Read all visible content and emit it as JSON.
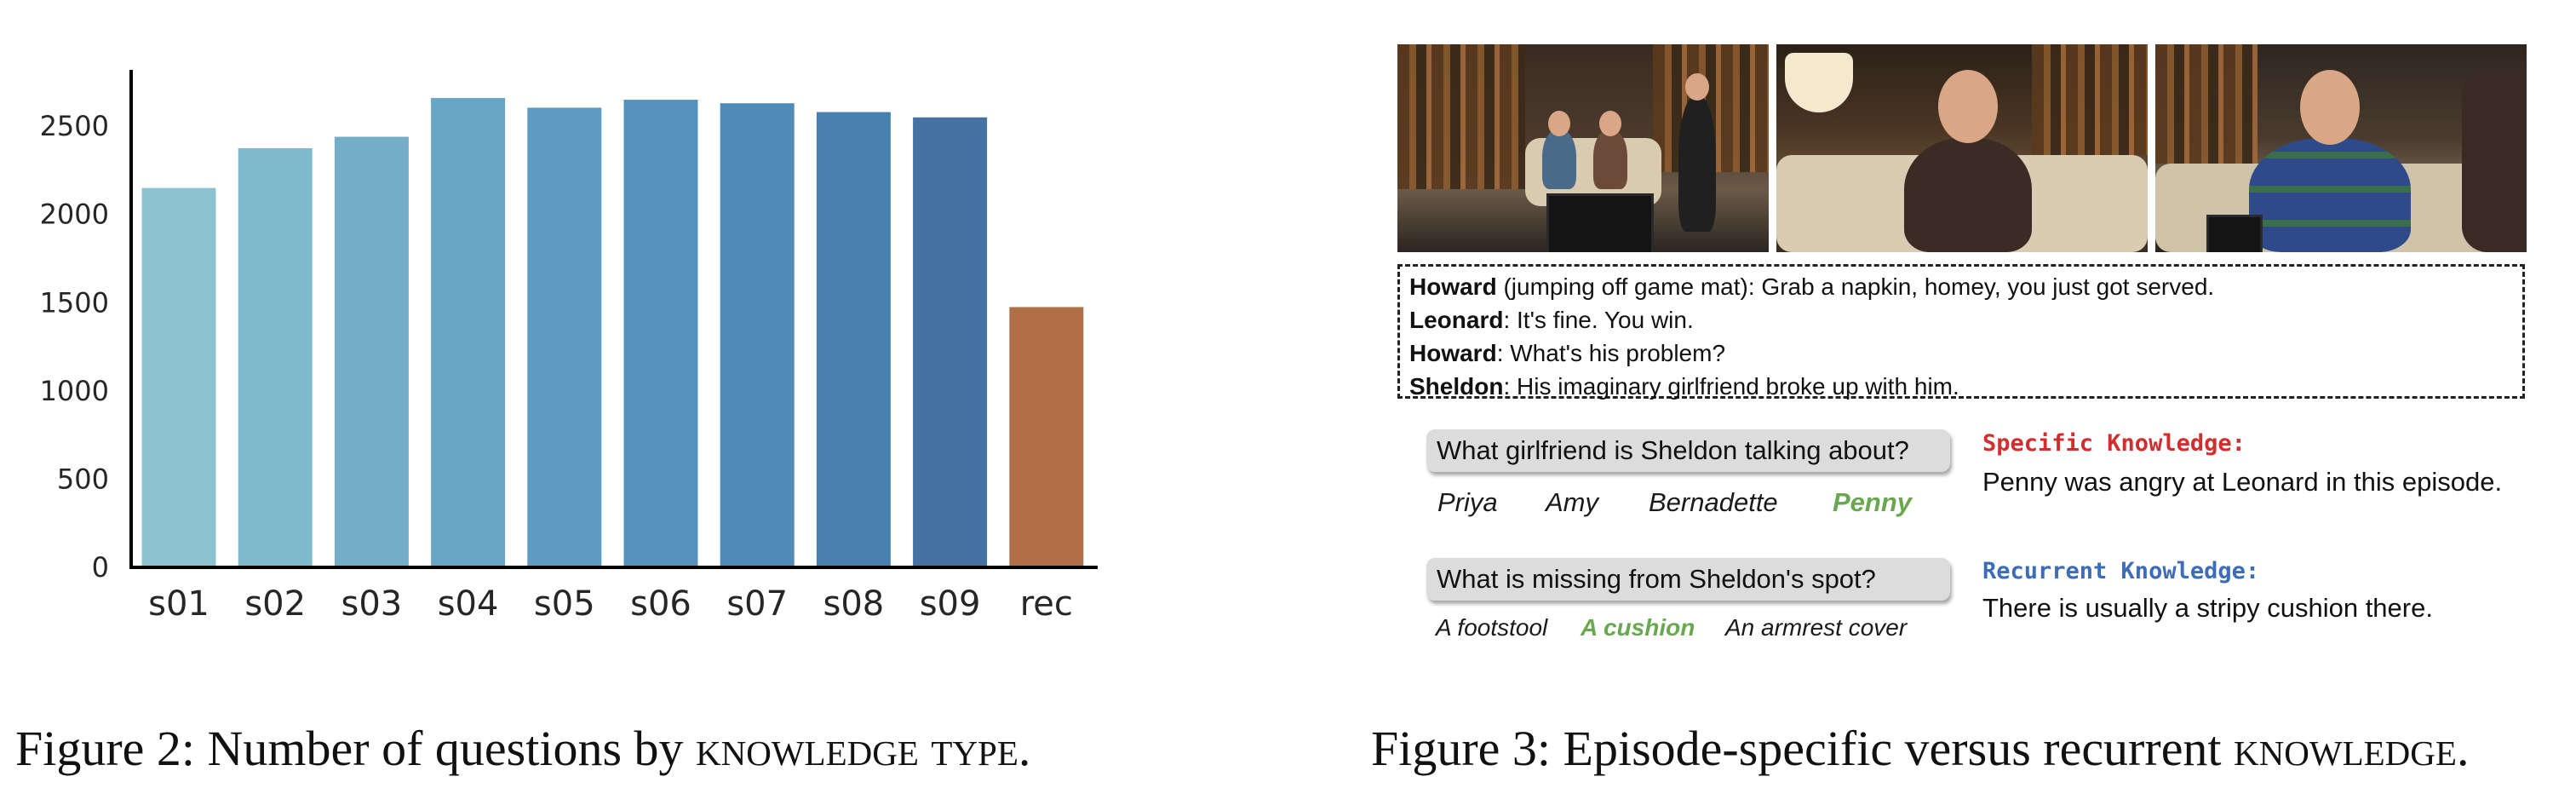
{
  "figure2": {
    "caption_prefix": "Figure 2: Number of questions by ",
    "caption_term": "knowledge type",
    "caption_suffix": "."
  },
  "chart_data": {
    "type": "bar",
    "categories": [
      "s01",
      "s02",
      "s03",
      "s04",
      "s05",
      "s06",
      "s07",
      "s08",
      "s09",
      "rec"
    ],
    "values": [
      2150,
      2375,
      2440,
      2660,
      2605,
      2650,
      2630,
      2580,
      2550,
      1475
    ],
    "colors": [
      "#8dc3cf",
      "#80bacd",
      "#73aec8",
      "#68a6c6",
      "#5e9bc2",
      "#5592bd",
      "#4f8bba",
      "#4881b0",
      "#4473a1",
      "#b06f47"
    ],
    "yticks": [
      0,
      500,
      1000,
      1500,
      2000,
      2500
    ],
    "ylim": [
      0,
      2800
    ],
    "title": "",
    "xlabel": "",
    "ylabel": "",
    "grid": false
  },
  "figure3": {
    "caption_prefix": "Figure 3: Episode-specific versus recurrent ",
    "caption_term": "knowledge",
    "caption_suffix": ".",
    "dialogue": [
      {
        "speaker": "Howard",
        "text": " (jumping off game mat): Grab a napkin, homey, you just got served."
      },
      {
        "speaker": "Leonard",
        "text": ": It's fine. You win."
      },
      {
        "speaker": "Howard",
        "text": ": What's his problem?"
      },
      {
        "speaker": "Sheldon",
        "text": ": His imaginary girlfriend broke up with him."
      }
    ],
    "q1": {
      "question": "What girlfriend is Sheldon talking about?",
      "answers": [
        "Priya",
        "Amy",
        "Bernadette",
        "Penny"
      ],
      "correct_index": 3
    },
    "q2": {
      "question": "What is missing from Sheldon's spot?",
      "answers": [
        "A footstool",
        "A cushion",
        "An armrest cover"
      ],
      "correct_index": 1
    },
    "specific": {
      "heading": "Specific Knowledge:",
      "text": "Penny was angry at Leonard in this episode.",
      "color": "#d12e2e"
    },
    "recurrent": {
      "heading": "Recurrent Knowledge:",
      "text": "There is usually a stripy cushion there.",
      "color": "#3d6db8"
    },
    "correct_color": "#6aa84f"
  }
}
